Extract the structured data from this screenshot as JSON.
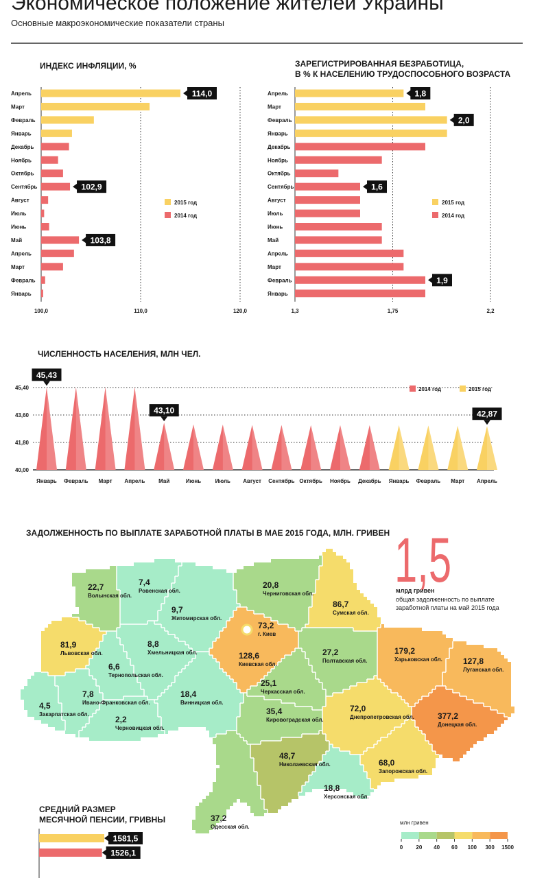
{
  "header": {
    "title": "Экономическое положение жителей Украины",
    "subtitle": "Основные макроэкономические показатели страны"
  },
  "chart_data": [
    {
      "type": "hbar",
      "title": "ИНДЕКС ИНФЛЯЦИИ, %",
      "categories": [
        "Апрель",
        "Март",
        "Февраль",
        "Январь",
        "Декабрь",
        "Ноябрь",
        "Октябрь",
        "Сентябрь",
        "Август",
        "Июль",
        "Июнь",
        "Май",
        "Апрель",
        "Март",
        "Февраль",
        "Январь"
      ],
      "series": [
        {
          "name": "2015 год",
          "color": "#f9d162",
          "values": [
            114.0,
            110.9,
            105.3,
            103.1,
            null,
            null,
            null,
            null,
            null,
            null,
            null,
            null,
            null,
            null,
            null,
            null
          ],
          "value_labels": [
            "114,0",
            null,
            null,
            null,
            null,
            null,
            null,
            null,
            null,
            null,
            null,
            null,
            null,
            null,
            null,
            null
          ]
        },
        {
          "name": "2014 год",
          "color": "#ec6a6c",
          "values": [
            null,
            null,
            null,
            null,
            102.8,
            101.7,
            102.2,
            102.9,
            100.7,
            100.3,
            100.8,
            103.8,
            103.3,
            102.2,
            100.4,
            100.2
          ],
          "value_labels": [
            null,
            null,
            null,
            null,
            null,
            null,
            null,
            "102,9",
            null,
            null,
            null,
            "103,8",
            null,
            null,
            null,
            null
          ]
        }
      ],
      "xlim": [
        100,
        120
      ],
      "xticks": [
        {
          "value": 100,
          "label": "100,0"
        },
        {
          "value": 110,
          "label": "110,0"
        },
        {
          "value": 120,
          "label": "120,0"
        }
      ],
      "grid": true
    },
    {
      "type": "hbar",
      "title": [
        "ЗАРЕГИСТРИРОВАННАЯ БЕЗРАБОТИЦА,",
        "В % К НАСЕЛЕНИЮ ТРУДОСПОСОБНОГО ВОЗРАСТА"
      ],
      "categories": [
        "Апрель",
        "Март",
        "Февраль",
        "Январь",
        "Декабрь",
        "Ноябрь",
        "Октябрь",
        "Сентябрь",
        "Август",
        "Июль",
        "Июнь",
        "Май",
        "Апрель",
        "Март",
        "Февраль",
        "Январь"
      ],
      "series": [
        {
          "name": "2015 год",
          "color": "#f9d162",
          "values": [
            1.8,
            1.9,
            2.0,
            2.0,
            null,
            null,
            null,
            null,
            null,
            null,
            null,
            null,
            null,
            null,
            null,
            null
          ],
          "value_labels": [
            "1,8",
            null,
            "2,0",
            null,
            null,
            null,
            null,
            null,
            null,
            null,
            null,
            null,
            null,
            null,
            null,
            null
          ]
        },
        {
          "name": "2014 год",
          "color": "#ec6a6c",
          "values": [
            null,
            null,
            null,
            null,
            1.9,
            1.7,
            1.5,
            1.6,
            1.6,
            1.6,
            1.7,
            1.7,
            1.8,
            1.8,
            1.9,
            1.9
          ],
          "value_labels": [
            null,
            null,
            null,
            null,
            null,
            null,
            null,
            "1,6",
            null,
            null,
            null,
            null,
            null,
            null,
            "1,9",
            null
          ]
        }
      ],
      "xlim": [
        1.3,
        2.2
      ],
      "xticks": [
        {
          "value": 1.3,
          "label": "1,3"
        },
        {
          "value": 1.75,
          "label": "1,75"
        },
        {
          "value": 2.2,
          "label": "2,2"
        }
      ],
      "grid": true
    },
    {
      "type": "spike",
      "title": "ЧИСЛЕННОСТЬ НАСЕЛЕНИЯ, МЛН ЧЕЛ.",
      "categories": [
        "Январь",
        "Февраль",
        "Март",
        "Апрель",
        "Май",
        "Июнь",
        "Июль",
        "Август",
        "Сентябрь",
        "Октябрь",
        "Ноябрь",
        "Декабрь",
        "Январь",
        "Февраль",
        "Март",
        "Апрель"
      ],
      "series": [
        {
          "name": "2014 год",
          "color": "#ec6a6c",
          "values": [
            45.43,
            45.43,
            45.43,
            45.43,
            43.1,
            42.98,
            42.97,
            42.95,
            42.94,
            42.93,
            42.93,
            42.93,
            null,
            null,
            null,
            null
          ],
          "value_labels": [
            "45,43",
            null,
            null,
            null,
            "43,10",
            null,
            null,
            null,
            null,
            null,
            null,
            null,
            null,
            null,
            null,
            null
          ]
        },
        {
          "name": "2015 год",
          "color": "#f9d162",
          "values": [
            null,
            null,
            null,
            null,
            null,
            null,
            null,
            null,
            null,
            null,
            null,
            null,
            42.93,
            42.91,
            42.89,
            42.87
          ],
          "value_labels": [
            null,
            null,
            null,
            null,
            null,
            null,
            null,
            null,
            null,
            null,
            null,
            null,
            null,
            null,
            null,
            "42,87"
          ]
        }
      ],
      "ylim": [
        40,
        45.4
      ],
      "yticks": [
        {
          "value": 40,
          "label": "40,00"
        },
        {
          "value": 41.8,
          "label": "41,80"
        },
        {
          "value": 43.6,
          "label": "43,60"
        },
        {
          "value": 45.4,
          "label": "45,40"
        }
      ],
      "grid": true
    },
    {
      "type": "map",
      "title": "ЗАДОЛЖЕННОСТЬ ПО ВЫПЛАТЕ ЗАРАБОТНОЙ ПЛАТЫ В МАЕ 2015 ГОДА, МЛН. ГРИВЕН",
      "total": "1,5",
      "total_unit": "млрд гривен",
      "total_note": [
        "общая задолженность по выплате",
        "заработной платы на май 2015 года"
      ],
      "regions": [
        {
          "name": "Волынская обл.",
          "value": 22.7,
          "value_label": "22,7"
        },
        {
          "name": "Ровенская обл.",
          "value": 7.4,
          "value_label": "7,4"
        },
        {
          "name": "Житомирская обл.",
          "value": 9.7,
          "value_label": "9,7"
        },
        {
          "name": "Черниговская обл.",
          "value": 20.8,
          "value_label": "20,8"
        },
        {
          "name": "Сумская обл.",
          "value": 86.7,
          "value_label": "86,7"
        },
        {
          "name": "Львовская обл.",
          "value": 81.9,
          "value_label": "81,9"
        },
        {
          "name": "Тернопольская обл.",
          "value": 6.6,
          "value_label": "6,6"
        },
        {
          "name": "Хмельницкая обл.",
          "value": 8.8,
          "value_label": "8,8"
        },
        {
          "name": "Закарпатская обл.",
          "value": 4.5,
          "value_label": "4,5"
        },
        {
          "name": "Ивано-Франковская обл.",
          "value": 7.8,
          "value_label": "7,8"
        },
        {
          "name": "Черновицкая обл.",
          "value": 2.2,
          "value_label": "2,2"
        },
        {
          "name": "Винницкая обл.",
          "value": 18.4,
          "value_label": "18,4"
        },
        {
          "name": "Киевская обл.",
          "value": 128.6,
          "value_label": "128,6"
        },
        {
          "name": "г. Киев",
          "value": 73.2,
          "value_label": "73,2"
        },
        {
          "name": "Черкасская обл.",
          "value": 25.1,
          "value_label": "25,1"
        },
        {
          "name": "Полтавская обл.",
          "value": 27.2,
          "value_label": "27,2"
        },
        {
          "name": "Харьковская обл.",
          "value": 179.2,
          "value_label": "179,2"
        },
        {
          "name": "Луганская обл.",
          "value": 127.8,
          "value_label": "127,8"
        },
        {
          "name": "Кировоградская обл.",
          "value": 35.4,
          "value_label": "35,4"
        },
        {
          "name": "Днепропетровская обл.",
          "value": 72.0,
          "value_label": "72,0"
        },
        {
          "name": "Донецкая обл.",
          "value": 377.2,
          "value_label": "377,2"
        },
        {
          "name": "Николаевская обл.",
          "value": 48.7,
          "value_label": "48,7"
        },
        {
          "name": "Запорожская обл.",
          "value": 68.0,
          "value_label": "68,0"
        },
        {
          "name": "Херсонская обл.",
          "value": 18.8,
          "value_label": "18,8"
        },
        {
          "name": "Одесская обл.",
          "value": 37.2,
          "value_label": "37,2"
        }
      ],
      "legend_title": "млн гривен",
      "scale": [
        0,
        20,
        40,
        60,
        100,
        300,
        1500
      ],
      "scale_colors": [
        "#a6ecc8",
        "#a9d98b",
        "#b6c468",
        "#f5dc6b",
        "#f8b95c",
        "#f4964a"
      ]
    },
    {
      "type": "bar",
      "title": [
        "СРЕДНИЙ РАЗМЕР",
        "МЕСЯЧНОЙ ПЕНСИИ, ГРИВНЫ"
      ],
      "values": [
        1581.5,
        1526.1
      ],
      "value_labels": [
        "1581,5",
        "1526,1"
      ],
      "colors": [
        "#f9d162",
        "#ec6a6c"
      ]
    }
  ]
}
